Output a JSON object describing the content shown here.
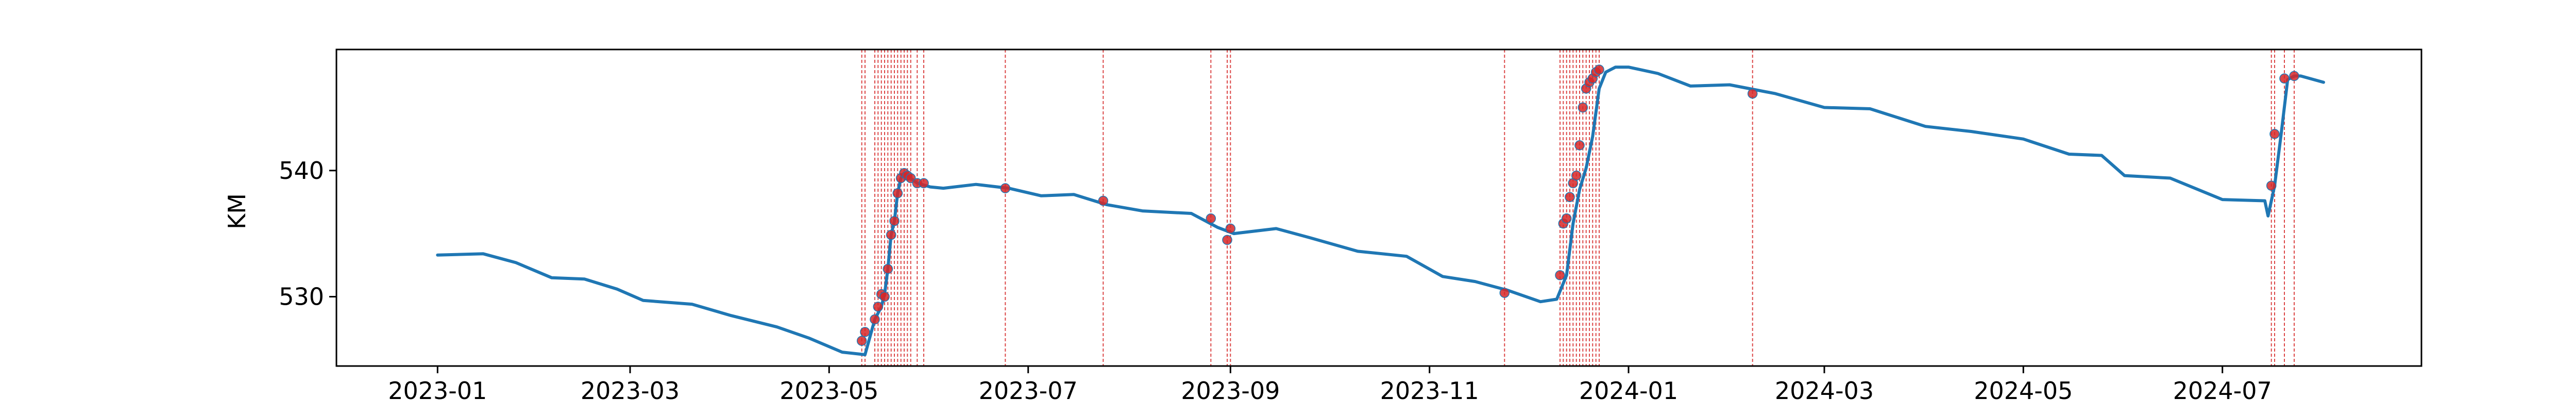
{
  "chart_data": {
    "type": "line",
    "title": "",
    "xlabel": "",
    "ylabel": "KM",
    "x_ticks": [
      "2023-01",
      "2023-03",
      "2023-05",
      "2023-07",
      "2023-09",
      "2023-11",
      "2024-01",
      "2024-03",
      "2024-05",
      "2024-07"
    ],
    "y_ticks": [
      530,
      540
    ],
    "xlim": [
      "2022-12-01",
      "2024-08-31"
    ],
    "ylim": [
      524.5,
      549.6
    ],
    "grid": false,
    "legend": "none",
    "colors": {
      "line": "#1f77b4",
      "points": "#d62728",
      "vlines": "#d62728"
    },
    "series": [
      {
        "x": [
          "2023-01-01",
          "2023-01-15",
          "2023-01-25",
          "2023-02-05",
          "2023-02-15",
          "2023-02-25",
          "2023-03-05",
          "2023-03-20",
          "2023-04-01",
          "2023-04-15",
          "2023-04-25",
          "2023-05-05",
          "2023-05-12",
          "2023-05-15",
          "2023-05-17",
          "2023-05-18",
          "2023-05-19",
          "2023-05-20",
          "2023-05-21",
          "2023-05-22",
          "2023-05-23",
          "2023-05-24",
          "2023-05-25",
          "2023-05-26",
          "2023-05-28",
          "2023-06-01",
          "2023-06-05",
          "2023-06-15",
          "2023-06-25",
          "2023-07-05",
          "2023-07-15",
          "2023-07-25",
          "2023-08-05",
          "2023-08-20",
          "2023-08-28",
          "2023-09-02",
          "2023-09-15",
          "2023-09-25",
          "2023-10-10",
          "2023-10-25",
          "2023-11-05",
          "2023-11-15",
          "2023-11-25",
          "2023-12-05",
          "2023-12-10",
          "2023-12-13",
          "2023-12-15",
          "2023-12-17",
          "2023-12-19",
          "2023-12-21",
          "2023-12-23",
          "2023-12-25",
          "2023-12-28",
          "2024-01-01",
          "2024-01-10",
          "2024-01-20",
          "2024-02-01",
          "2024-02-15",
          "2024-03-01",
          "2024-03-15",
          "2024-04-01",
          "2024-04-15",
          "2024-05-01",
          "2024-05-15",
          "2024-05-25",
          "2024-06-01",
          "2024-06-15",
          "2024-07-01",
          "2024-07-14",
          "2024-07-15",
          "2024-07-17",
          "2024-07-19",
          "2024-07-21",
          "2024-07-23",
          "2024-07-25",
          "2024-08-01"
        ],
        "y": [
          533.3,
          533.4,
          532.7,
          531.5,
          531.4,
          530.6,
          529.7,
          529.4,
          528.5,
          527.6,
          526.7,
          525.6,
          525.4,
          528.2,
          529.2,
          530.2,
          532.2,
          534.9,
          536.0,
          538.2,
          539.4,
          539.8,
          539.6,
          539.4,
          539.0,
          538.7,
          538.6,
          538.9,
          538.6,
          538.0,
          538.1,
          537.3,
          536.8,
          536.6,
          535.5,
          535.0,
          535.4,
          534.7,
          533.6,
          533.2,
          531.6,
          531.2,
          530.5,
          529.6,
          529.8,
          531.7,
          535.8,
          538.5,
          540.2,
          542.7,
          546.5,
          547.8,
          548.2,
          548.2,
          547.7,
          546.7,
          546.8,
          546.1,
          545.0,
          544.9,
          543.5,
          543.1,
          542.5,
          541.3,
          541.2,
          539.6,
          539.4,
          537.7,
          537.6,
          536.4,
          538.8,
          542.9,
          547.2,
          547.5,
          547.5,
          547.0
        ]
      }
    ],
    "events": [
      {
        "x": "2023-05-11",
        "y": 526.5
      },
      {
        "x": "2023-05-12",
        "y": 527.2
      },
      {
        "x": "2023-05-15",
        "y": 528.2
      },
      {
        "x": "2023-05-16",
        "y": 529.2
      },
      {
        "x": "2023-05-17",
        "y": 530.2
      },
      {
        "x": "2023-05-18",
        "y": 530.0
      },
      {
        "x": "2023-05-19",
        "y": 532.2
      },
      {
        "x": "2023-05-20",
        "y": 534.9
      },
      {
        "x": "2023-05-21",
        "y": 536.0
      },
      {
        "x": "2023-05-22",
        "y": 538.2
      },
      {
        "x": "2023-05-23",
        "y": 539.4
      },
      {
        "x": "2023-05-24",
        "y": 539.8
      },
      {
        "x": "2023-05-25",
        "y": 539.6
      },
      {
        "x": "2023-05-26",
        "y": 539.4
      },
      {
        "x": "2023-05-28",
        "y": 539.0
      },
      {
        "x": "2023-05-30",
        "y": 539.0
      },
      {
        "x": "2023-06-24",
        "y": 538.6
      },
      {
        "x": "2023-07-24",
        "y": 537.6
      },
      {
        "x": "2023-08-26",
        "y": 536.2
      },
      {
        "x": "2023-08-31",
        "y": 534.5
      },
      {
        "x": "2023-09-01",
        "y": 535.4
      },
      {
        "x": "2023-11-24",
        "y": 530.3
      },
      {
        "x": "2023-12-11",
        "y": 531.7
      },
      {
        "x": "2023-12-12",
        "y": 535.8
      },
      {
        "x": "2023-12-13",
        "y": 536.2
      },
      {
        "x": "2023-12-14",
        "y": 537.9
      },
      {
        "x": "2023-12-15",
        "y": 539.0
      },
      {
        "x": "2023-12-16",
        "y": 539.6
      },
      {
        "x": "2023-12-17",
        "y": 542.0
      },
      {
        "x": "2023-12-18",
        "y": 545.0
      },
      {
        "x": "2023-12-19",
        "y": 546.5
      },
      {
        "x": "2023-12-20",
        "y": 547.0
      },
      {
        "x": "2023-12-21",
        "y": 547.3
      },
      {
        "x": "2023-12-22",
        "y": 547.8
      },
      {
        "x": "2023-12-23",
        "y": 548.0
      },
      {
        "x": "2024-02-08",
        "y": 546.1
      },
      {
        "x": "2024-07-16",
        "y": 538.8
      },
      {
        "x": "2024-07-17",
        "y": 542.9
      },
      {
        "x": "2024-07-20",
        "y": 547.3
      },
      {
        "x": "2024-07-23",
        "y": 547.5
      }
    ]
  }
}
